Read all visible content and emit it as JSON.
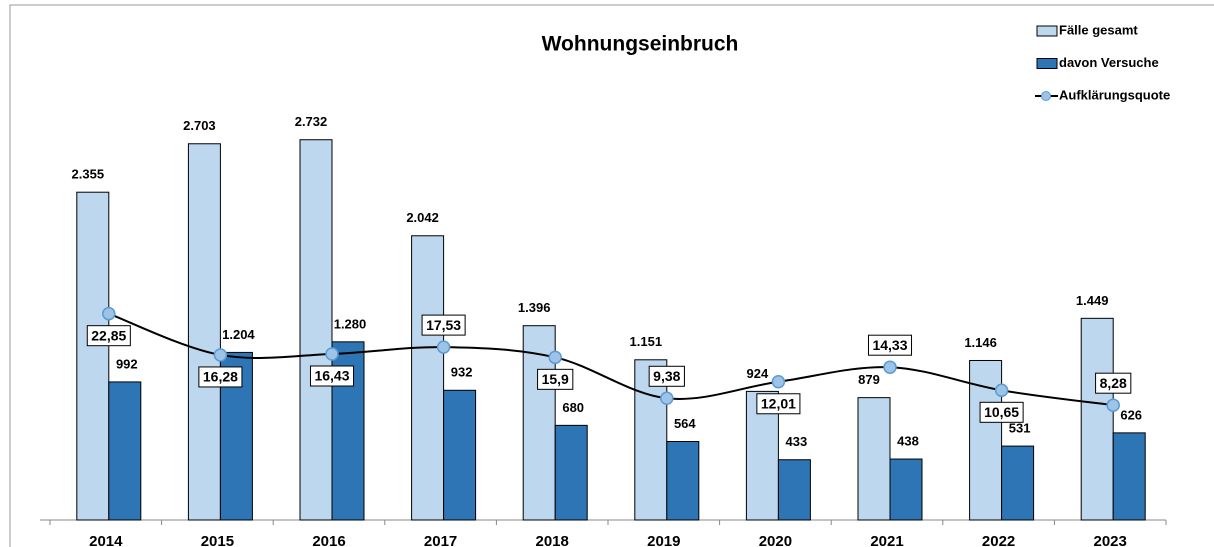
{
  "chart_data": {
    "type": "bar-line",
    "title": "Wohnungseinbruch",
    "categories": [
      "2014",
      "2015",
      "2016",
      "2017",
      "2018",
      "2019",
      "2020",
      "2021",
      "2022",
      "2023"
    ],
    "series": [
      {
        "name": "Fälle gesamt",
        "type": "bar",
        "color": "#bdd7ee",
        "values": [
          2355,
          2703,
          2732,
          2042,
          1396,
          1151,
          924,
          879,
          1146,
          1449
        ],
        "value_labels": [
          "2.355",
          "2.703",
          "2.732",
          "2.042",
          "1.396",
          "1.151",
          "924",
          "879",
          "1.146",
          "1.449"
        ]
      },
      {
        "name": "davon Versuche",
        "type": "bar",
        "color": "#2e75b6",
        "values": [
          992,
          1204,
          1280,
          932,
          680,
          564,
          433,
          438,
          531,
          626
        ],
        "value_labels": [
          "992",
          "1.204",
          "1.280",
          "932",
          "680",
          "564",
          "433",
          "438",
          "531",
          "626"
        ]
      },
      {
        "name": "Aufklärungsquote",
        "type": "line",
        "axis": "y2",
        "color": "#000000",
        "marker_color": "#9dc3e6",
        "values": [
          22.85,
          16.28,
          16.43,
          17.53,
          15.9,
          9.38,
          12.01,
          14.33,
          10.65,
          8.28
        ],
        "value_labels": [
          "22,85",
          "16,28",
          "16,43",
          "17,53",
          "15,9",
          "9,38",
          "12,01",
          "14,33",
          "10,65",
          "8,28"
        ]
      }
    ],
    "ylim": [
      0,
      3700
    ],
    "y2lim": [
      -10,
      72
    ],
    "legend": "top-right"
  }
}
